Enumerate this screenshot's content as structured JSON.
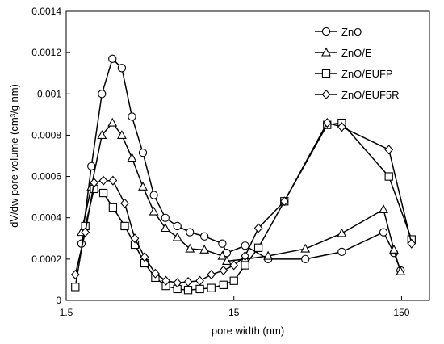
{
  "chart_data": {
    "type": "line",
    "title": "",
    "xlabel": "pore width  (nm)",
    "ylabel": "dV/dw pore volume (cm³/g nm)",
    "xscale": "log",
    "xlim": [
      1.5,
      220
    ],
    "ylim": [
      0,
      0.0014
    ],
    "xticks": [
      1.5,
      15,
      150
    ],
    "xtick_labels": [
      "1.5",
      "15",
      "150"
    ],
    "yticks": [
      0,
      0.0002,
      0.0004,
      0.0006,
      0.0008,
      0.001,
      0.0012,
      0.0014
    ],
    "ytick_labels": [
      "0",
      "0.0002",
      "0.0004",
      "0.0006",
      "0.0008",
      "0.001",
      "0.0012",
      "0.0014"
    ],
    "grid": false,
    "legend_position": "top-right",
    "series": [
      {
        "name": "ZnO",
        "marker": "circle",
        "x": [
          1.85,
          2.12,
          2.45,
          2.83,
          3.22,
          3.7,
          4.3,
          5.0,
          5.85,
          6.9,
          8.2,
          10.0,
          12.8,
          13.6,
          17.5,
          24.0,
          40.0,
          66.0,
          117,
          135,
          148
        ],
        "y": [
          0.000275,
          0.00065,
          0.001,
          0.00117,
          0.001125,
          0.00089,
          0.000715,
          0.00051,
          0.0004,
          0.00036,
          0.00033,
          0.00031,
          0.000275,
          0.00023,
          0.000265,
          0.0002,
          0.0002,
          0.000235,
          0.00033,
          0.00023,
          0.000145
        ]
      },
      {
        "name": "ZnO/E",
        "marker": "triangle",
        "x": [
          1.85,
          2.12,
          2.45,
          2.83,
          3.22,
          3.7,
          4.3,
          5.0,
          5.85,
          6.9,
          8.2,
          10.0,
          12.8,
          13.6,
          17.5,
          24.0,
          40.0,
          66.0,
          117,
          135,
          148
        ],
        "y": [
          0.00033,
          0.00055,
          0.0008,
          0.00086,
          0.0008,
          0.00069,
          0.00055,
          0.00043,
          0.00035,
          0.000305,
          0.00025,
          0.000245,
          0.000215,
          0.00019,
          0.0002,
          0.000215,
          0.00025,
          0.000325,
          0.00044,
          0.000245,
          0.00014
        ]
      },
      {
        "name": "ZnO/EUFP",
        "marker": "square",
        "x": [
          1.7,
          1.95,
          2.2,
          2.5,
          2.85,
          3.35,
          3.85,
          4.4,
          5.1,
          5.9,
          6.9,
          8.0,
          9.4,
          11.0,
          13.0,
          15.0,
          17.5,
          21.0,
          30.0,
          54.0,
          66.0,
          126,
          172
        ],
        "y": [
          6.5e-05,
          0.00036,
          0.00054,
          0.00052,
          0.00045,
          0.00036,
          0.00027,
          0.00018,
          0.00011,
          7e-05,
          5.5e-05,
          5e-05,
          5.5e-05,
          6e-05,
          7.5e-05,
          9.5e-05,
          0.00017,
          0.000255,
          0.00048,
          0.00085,
          0.00086,
          0.0006,
          0.000295
        ]
      },
      {
        "name": "ZnO/EUF5R",
        "marker": "diamond",
        "x": [
          1.7,
          1.95,
          2.2,
          2.5,
          2.85,
          3.35,
          3.85,
          4.4,
          5.1,
          5.9,
          6.9,
          8.0,
          9.4,
          11.0,
          13.0,
          15.0,
          17.5,
          21.0,
          30.0,
          54.0,
          66.0,
          126,
          172
        ],
        "y": [
          0.000125,
          0.00033,
          0.00057,
          0.00058,
          0.00058,
          0.00047,
          0.0003,
          0.00021,
          0.00013,
          9.5e-05,
          8.5e-05,
          9e-05,
          9.5e-05,
          0.000125,
          0.000145,
          0.00017,
          0.000215,
          0.00035,
          0.00048,
          0.00086,
          0.00084,
          0.00073,
          0.000275
        ]
      }
    ]
  }
}
